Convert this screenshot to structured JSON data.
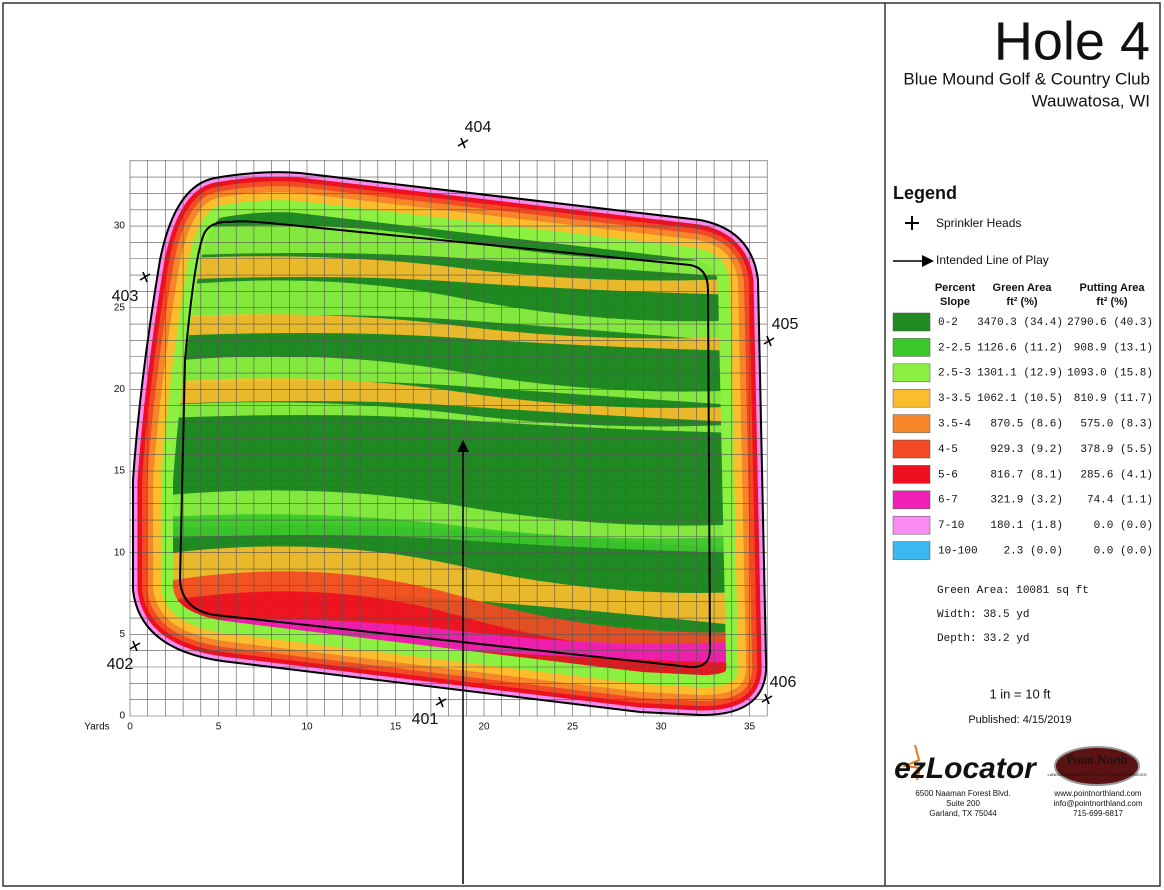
{
  "header": {
    "title": "Hole 4",
    "club": "Blue Mound Golf & Country Club",
    "location": "Wauwatosa, WI"
  },
  "map": {
    "axis_label": "Yards",
    "x_ticks": [
      0,
      5,
      10,
      15,
      20,
      25,
      30,
      35
    ],
    "y_ticks": [
      0,
      5,
      10,
      15,
      20,
      25,
      30
    ],
    "sprinklers": [
      "404",
      "403",
      "405",
      "402",
      "401",
      "406"
    ]
  },
  "legend": {
    "title": "Legend",
    "sprinkler": "Sprinkler Heads",
    "line_of_play": "Intended Line of Play",
    "columns": [
      [
        "Percent",
        "Slope"
      ],
      [
        "Green Area",
        "ft² (%)"
      ],
      [
        "Putting Area",
        "ft² (%)"
      ]
    ],
    "rows": [
      {
        "range": "0-2",
        "color": "#208a22",
        "green_area": "3470.3 (34.4)",
        "putting_area": "2790.6 (40.3)"
      },
      {
        "range": "2-2.5",
        "color": "#3cc72a",
        "green_area": "1126.6 (11.2)",
        "putting_area": "908.9 (13.1)"
      },
      {
        "range": "2.5-3",
        "color": "#8cf040",
        "green_area": "1301.1 (12.9)",
        "putting_area": "1093.0 (15.8)"
      },
      {
        "range": "3-3.5",
        "color": "#fbbd2c",
        "green_area": "1062.1 (10.5)",
        "putting_area": "810.9 (11.7)"
      },
      {
        "range": "3.5-4",
        "color": "#f7862a",
        "green_area": "870.5 (8.6)",
        "putting_area": "575.0 (8.3)"
      },
      {
        "range": "4-5",
        "color": "#f24a23",
        "green_area": "929.3 (9.2)",
        "putting_area": "378.9 (5.5)"
      },
      {
        "range": "5-6",
        "color": "#ee1020",
        "green_area": "816.7 (8.1)",
        "putting_area": "285.6 (4.1)"
      },
      {
        "range": "6-7",
        "color": "#f020b8",
        "green_area": "321.9 (3.2)",
        "putting_area": "74.4 (1.1)"
      },
      {
        "range": "7-10",
        "color": "#f88cf0",
        "green_area": "180.1 (1.8)",
        "putting_area": "0.0 (0.0)"
      },
      {
        "range": "10-100",
        "color": "#3ab8f0",
        "green_area": "2.3 (0.0)",
        "putting_area": "0.0 (0.0)"
      }
    ]
  },
  "stats": [
    "Green Area: 10081 sq ft",
    "Width: 38.5 yd",
    "Depth: 33.2 yd"
  ],
  "scale": "1 in = 10 ft",
  "published": "Published: 4/15/2019",
  "logos": {
    "ezlocator": "ezLocator",
    "point_north": "Point North",
    "point_north_tagline": "LANDSCAPE MAPPING & GOLF COURSE SERVICES",
    "address": [
      "6500 Naaman Forest Blvd.",
      "Suite 200",
      "Garland, TX  75044"
    ],
    "contact": [
      "www.pointnorthland.com",
      "info@pointnorthland.com",
      "715-699-6817"
    ]
  }
}
